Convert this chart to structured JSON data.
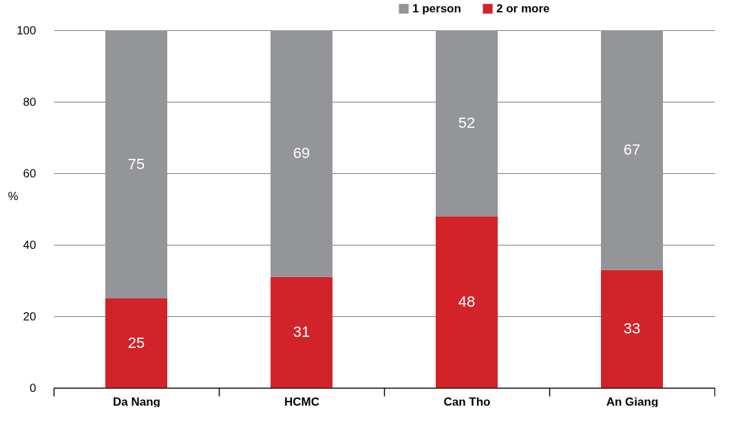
{
  "chart_data": {
    "type": "bar",
    "stacked": true,
    "ylabel": "%",
    "categories": [
      "Da Nang",
      "HCMC",
      "Can Tho",
      "An Giang"
    ],
    "series": [
      {
        "name": "2 or more",
        "color": "#d2232a",
        "values": [
          25,
          31,
          48,
          33
        ]
      },
      {
        "name": "1 person",
        "color": "#939598",
        "values": [
          75,
          69,
          52,
          67
        ]
      }
    ],
    "ylim": [
      0,
      100
    ],
    "yticks": [
      0,
      20,
      40,
      60,
      80,
      100
    ],
    "grid": "y",
    "legend": "top right",
    "data_labels": true
  }
}
